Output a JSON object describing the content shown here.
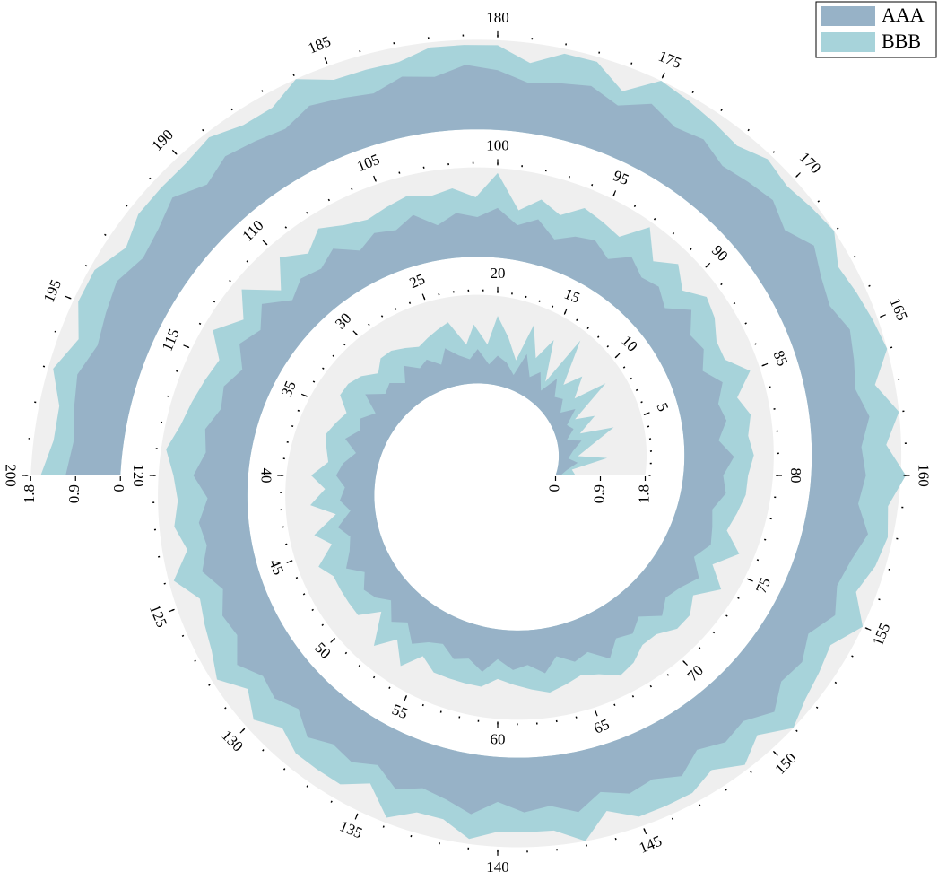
{
  "chart_data": {
    "type": "spiral-area",
    "x": [
      0,
      1,
      2,
      3,
      4,
      5,
      6,
      7,
      8,
      9,
      10,
      11,
      12,
      13,
      14,
      15,
      16,
      17,
      18,
      19,
      20,
      21,
      22,
      23,
      24,
      25,
      26,
      27,
      28,
      29,
      30,
      31,
      32,
      33,
      34,
      35,
      36,
      37,
      38,
      39,
      40,
      41,
      42,
      43,
      44,
      45,
      46,
      47,
      48,
      49,
      50,
      51,
      52,
      53,
      54,
      55,
      56,
      57,
      58,
      59,
      60,
      61,
      62,
      63,
      64,
      65,
      66,
      67,
      68,
      69,
      70,
      71,
      72,
      73,
      74,
      75,
      76,
      77,
      78,
      79,
      80,
      81,
      82,
      83,
      84,
      85,
      86,
      87,
      88,
      89,
      90,
      91,
      92,
      93,
      94,
      95,
      96,
      97,
      98,
      99,
      100,
      101,
      102,
      103,
      104,
      105,
      106,
      107,
      108,
      109,
      110,
      111,
      112,
      113,
      114,
      115,
      116,
      117,
      118,
      119,
      120,
      121,
      122,
      123,
      124,
      125,
      126,
      127,
      128,
      129,
      130,
      131,
      132,
      133,
      134,
      135,
      136,
      137,
      138,
      139,
      140,
      141,
      142,
      143,
      144,
      145,
      146,
      147,
      148,
      149,
      150,
      151,
      152,
      153,
      154,
      155,
      156,
      157,
      158,
      159,
      160,
      161,
      162,
      163,
      164,
      165,
      166,
      167,
      168,
      169,
      170,
      171,
      172,
      173,
      174,
      175,
      176,
      177,
      178,
      179,
      180,
      181,
      182,
      183,
      184,
      185,
      186,
      187,
      188,
      189,
      190,
      191,
      192,
      193,
      194,
      195,
      196,
      197,
      198,
      199,
      200
    ],
    "series": [
      {
        "name": "AAA",
        "color": "#97b2c7",
        "values": [
          0.1,
          0.2,
          0.4,
          0.2,
          0.3,
          0.5,
          0.2,
          0.4,
          0.3,
          0.6,
          0.3,
          0.5,
          0.4,
          0.7,
          0.3,
          0.6,
          0.4,
          0.8,
          0.3,
          0.5,
          0.6,
          0.4,
          0.7,
          0.5,
          0.6,
          0.8,
          0.5,
          0.7,
          0.6,
          0.8,
          0.5,
          0.7,
          0.6,
          0.9,
          0.5,
          0.7,
          0.6,
          0.8,
          0.5,
          0.7,
          0.8,
          0.6,
          0.7,
          0.5,
          0.8,
          0.6,
          0.7,
          0.9,
          0.6,
          0.8,
          0.7,
          0.5,
          0.8,
          0.6,
          0.9,
          0.7,
          0.6,
          0.8,
          0.7,
          0.9,
          0.6,
          0.8,
          0.7,
          0.9,
          0.6,
          0.8,
          0.7,
          1.0,
          0.7,
          0.8,
          0.6,
          0.9,
          0.7,
          0.8,
          1.0,
          0.7,
          0.9,
          0.8,
          0.7,
          0.9,
          0.8,
          1.0,
          0.7,
          0.9,
          0.8,
          1.0,
          0.7,
          0.9,
          0.8,
          1.1,
          0.7,
          0.9,
          0.8,
          1.0,
          0.7,
          0.9,
          0.8,
          0.6,
          0.9,
          0.7,
          1.0,
          0.8,
          0.9,
          0.7,
          1.0,
          0.8,
          0.9,
          0.7,
          1.0,
          0.8,
          0.9,
          0.7,
          1.1,
          0.8,
          1.0,
          0.7,
          0.9,
          0.8,
          1.0,
          0.9,
          1.1,
          0.8,
          1.0,
          0.9,
          1.1,
          0.8,
          1.0,
          0.9,
          1.2,
          0.9,
          1.0,
          0.8,
          1.1,
          0.9,
          1.0,
          0.8,
          1.1,
          0.9,
          1.0,
          1.2,
          0.9,
          1.1,
          1.0,
          1.2,
          0.9,
          1.1,
          1.0,
          1.2,
          0.9,
          1.1,
          1.0,
          1.3,
          1.0,
          1.1,
          0.9,
          1.2,
          1.0,
          1.1,
          1.3,
          1.0,
          1.1,
          1.0,
          1.2,
          1.0,
          1.1,
          1.2,
          1.0,
          1.1,
          1.3,
          1.0,
          1.2,
          1.1,
          1.0,
          1.2,
          1.1,
          1.3,
          1.0,
          1.2,
          1.1,
          1.0,
          1.2,
          1.3,
          1.1,
          1.2,
          1.0,
          1.1,
          1.2,
          1.0,
          1.1,
          1.2,
          1.0,
          1.3,
          1.1,
          1.0,
          1.2,
          1.1,
          1.0,
          1.2,
          1.1,
          1.0,
          1.1
        ]
      },
      {
        "name": "BBB",
        "color": "#a7d3da",
        "values": [
          0.3,
          0.1,
          0.6,
          0.2,
          0.4,
          0.7,
          0.3,
          0.5,
          0.2,
          0.8,
          0.4,
          0.6,
          0.3,
          0.9,
          0.2,
          0.7,
          0.4,
          0.6,
          0.3,
          0.5,
          0.8,
          0.4,
          0.5,
          0.3,
          0.7,
          0.4,
          0.6,
          0.3,
          0.5,
          0.4,
          0.7,
          0.3,
          0.6,
          0.4,
          0.8,
          0.3,
          0.5,
          0.4,
          0.6,
          0.3,
          0.5,
          0.4,
          0.6,
          0.3,
          0.5,
          0.4,
          0.7,
          0.3,
          0.6,
          0.4,
          0.5,
          0.3,
          0.6,
          0.4,
          0.5,
          0.3,
          0.6,
          0.4,
          0.5,
          0.3,
          0.4,
          0.3,
          0.5,
          0.4,
          0.6,
          0.3,
          0.5,
          0.4,
          0.6,
          0.3,
          0.5,
          0.4,
          0.6,
          0.3,
          0.5,
          0.4,
          0.6,
          0.3,
          0.5,
          0.4,
          0.5,
          0.4,
          0.6,
          0.5,
          0.4,
          0.6,
          0.5,
          0.3,
          0.6,
          0.4,
          0.5,
          0.6,
          0.4,
          0.7,
          0.5,
          0.4,
          0.6,
          0.5,
          0.4,
          0.3,
          0.7,
          0.4,
          0.5,
          0.6,
          0.4,
          0.5,
          0.3,
          0.6,
          0.5,
          0.4,
          0.6,
          0.3,
          0.5,
          0.4,
          0.6,
          0.5,
          0.4,
          0.6,
          0.5,
          0.8,
          0.4,
          0.6,
          0.5,
          0.4,
          0.6,
          0.5,
          0.4,
          0.6,
          0.5,
          0.4,
          0.6,
          0.5,
          0.4,
          0.6,
          0.5,
          0.4,
          0.6,
          0.5,
          0.4,
          0.5,
          0.6,
          0.4,
          0.5,
          0.6,
          0.4,
          0.5,
          0.6,
          0.4,
          0.5,
          0.6,
          0.4,
          0.5,
          0.6,
          0.4,
          0.5,
          0.6,
          0.4,
          0.5,
          0.4,
          0.6,
          0.8,
          0.5,
          0.6,
          0.4,
          0.7,
          0.5,
          0.6,
          0.4,
          0.5,
          0.7,
          0.4,
          0.6,
          0.5,
          0.4,
          0.6,
          0.5,
          0.3,
          0.5,
          0.6,
          0.4,
          0.5,
          0.4,
          0.6,
          0.3,
          0.5,
          0.4,
          0.6,
          0.5,
          0.4,
          0.5,
          0.6,
          0.3,
          0.5,
          0.4,
          0.5,
          0.6,
          0.4,
          0.5,
          0.3,
          0.4,
          0.5
        ]
      }
    ],
    "xticks": [
      5,
      10,
      15,
      20,
      25,
      30,
      35,
      40,
      45,
      50,
      55,
      60,
      65,
      70,
      75,
      80,
      85,
      90,
      95,
      100,
      105,
      110,
      115,
      120,
      125,
      130,
      135,
      140,
      145,
      150,
      155,
      160,
      165,
      170,
      175,
      180,
      185,
      190,
      195,
      200
    ],
    "rlim": [
      0,
      1.8
    ],
    "rticks": [
      0,
      0.9,
      1.8
    ],
    "points_per_turn": 80,
    "stacked": true,
    "background": "#efefef",
    "legend": "upper right"
  }
}
